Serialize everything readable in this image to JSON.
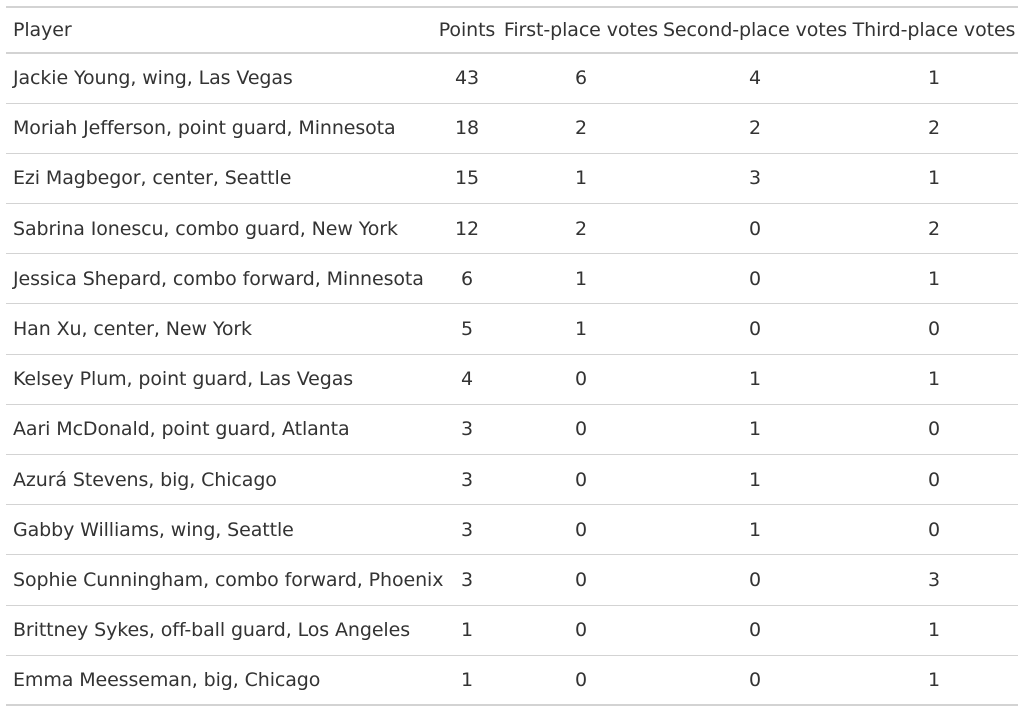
{
  "table": {
    "headers": [
      "Player",
      "Points",
      "First-place votes",
      "Second-place votes",
      "Third-place votes"
    ],
    "rows": [
      [
        "Jackie Young, wing, Las Vegas",
        "43",
        "6",
        "4",
        "1"
      ],
      [
        "Moriah Jefferson, point guard, Minnesota",
        "18",
        "2",
        "2",
        "2"
      ],
      [
        "Ezi Magbegor, center, Seattle",
        "15",
        "1",
        "3",
        "1"
      ],
      [
        "Sabrina Ionescu, combo guard, New York",
        "12",
        "2",
        "0",
        "2"
      ],
      [
        "Jessica Shepard, combo forward, Minnesota",
        "6",
        "1",
        "0",
        "1"
      ],
      [
        "Han Xu, center, New York",
        "5",
        "1",
        "0",
        "0"
      ],
      [
        "Kelsey Plum, point guard, Las Vegas",
        "4",
        "0",
        "1",
        "1"
      ],
      [
        "Aari McDonald, point guard, Atlanta",
        "3",
        "0",
        "1",
        "0"
      ],
      [
        "Azurá Stevens, big, Chicago",
        "3",
        "0",
        "1",
        "0"
      ],
      [
        "Gabby Williams, wing, Seattle",
        "3",
        "0",
        "1",
        "0"
      ],
      [
        "Sophie Cunningham, combo forward, Phoenix",
        "3",
        "0",
        "0",
        "3"
      ],
      [
        "Brittney Sykes, off-ball guard, Los Angeles",
        "1",
        "0",
        "0",
        "1"
      ],
      [
        "Emma Meesseman, big, Chicago",
        "1",
        "0",
        "0",
        "1"
      ]
    ]
  }
}
